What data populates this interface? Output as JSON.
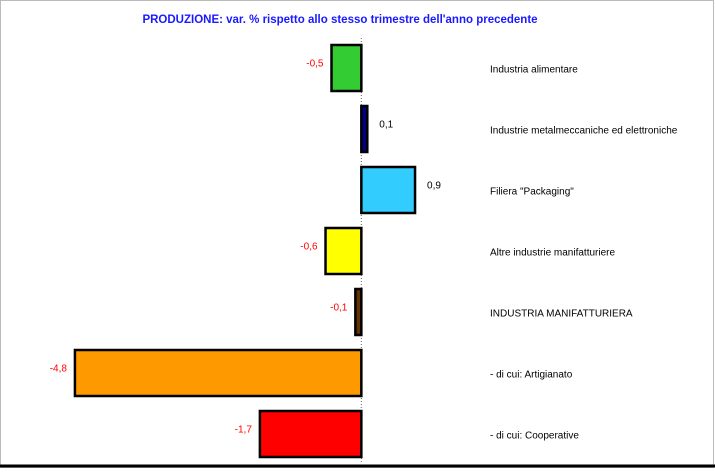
{
  "chart_data": {
    "type": "hbar",
    "title": "PRODUZIONE: var. % rispetto allo stesso trimestre dell'anno precedente",
    "categories": [
      "Industria alimentare",
      "Industrie metalmeccaniche ed elettroniche",
      "Filiera \"Packaging\"",
      "Altre industrie manifatturiere",
      "INDUSTRIA MANIFATTURIERA",
      "- di cui: Artigianato",
      "- di cui: Cooperative"
    ],
    "values": [
      -0.5,
      0.1,
      0.9,
      -0.6,
      -0.1,
      -4.8,
      -1.7
    ],
    "value_labels": [
      "-0,5",
      "0,1",
      "0,9",
      "-0,6",
      "-0,1",
      "-4,8",
      "-1,7"
    ],
    "colors": [
      "#33cc33",
      "#000080",
      "#33ccff",
      "#ffff00",
      "#663300",
      "#ff9900",
      "#ff0000"
    ],
    "xlim": [
      -5,
      1
    ]
  }
}
